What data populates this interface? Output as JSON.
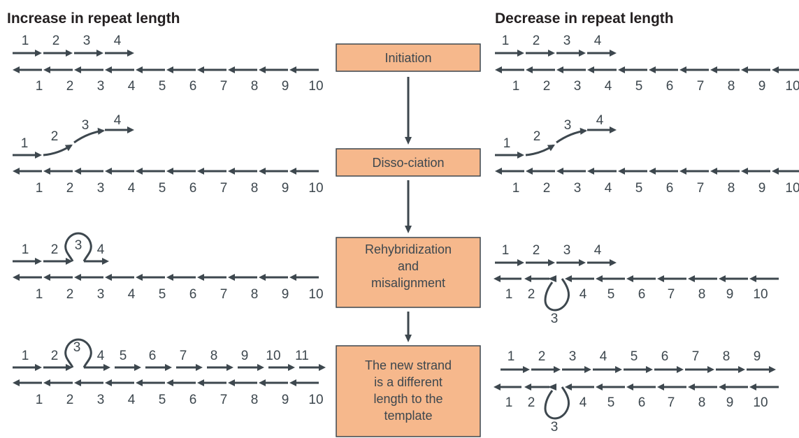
{
  "headings": {
    "left": "Increase in repeat length",
    "right": "Decrease in repeat length"
  },
  "steps": [
    {
      "id": "initiation",
      "lines": [
        "Initiation"
      ]
    },
    {
      "id": "dissociation",
      "lines": [
        "Disso-ciation"
      ]
    },
    {
      "id": "rehybridization",
      "lines": [
        "Rehybridization",
        "and",
        "misalignment"
      ]
    },
    {
      "id": "new-strand",
      "lines": [
        "The new strand",
        "is a different",
        "length to the",
        "template"
      ]
    }
  ],
  "template_labels": [
    "1",
    "2",
    "3",
    "4",
    "5",
    "6",
    "7",
    "8",
    "9",
    "10"
  ],
  "row1_new_labels": [
    "1",
    "2",
    "3",
    "4"
  ],
  "row2_new_labels": [
    "1",
    "2",
    "3",
    "4"
  ],
  "row3_left_new_labels": [
    "1",
    "2",
    "3",
    "4"
  ],
  "row3_right_new_labels": [
    "1",
    "2",
    "3",
    "4"
  ],
  "row3_right_template_labels": [
    "1",
    "2",
    "3",
    "4",
    "5",
    "6",
    "7",
    "8",
    "9",
    "10"
  ],
  "row4_left_new_labels": [
    "1",
    "2",
    "3",
    "4",
    "5",
    "6",
    "7",
    "8",
    "9",
    "10",
    "11"
  ],
  "row4_right_new_labels": [
    "1",
    "2",
    "3",
    "4",
    "5",
    "6",
    "7",
    "8",
    "9"
  ],
  "colors": {
    "strand": "#3d474e",
    "box_fill": "#f6b88c",
    "text": "#231f20"
  }
}
